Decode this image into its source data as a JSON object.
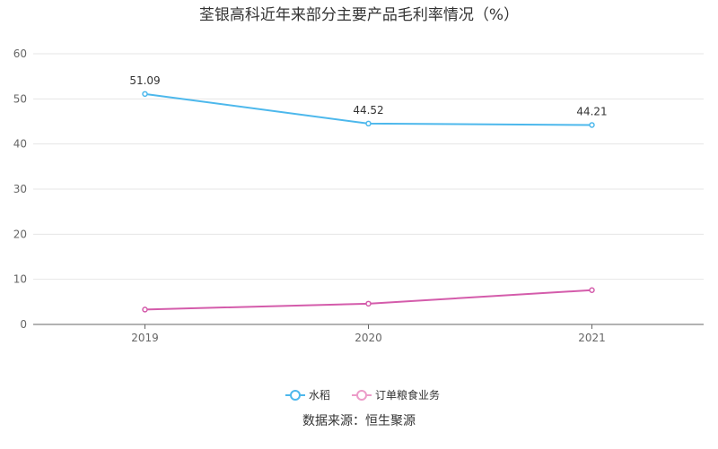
{
  "chart_data": {
    "type": "line",
    "title": "荃银高科近年来部分主要产品毛利率情况（%）",
    "source": "数据来源：恒生聚源",
    "categories": [
      "2019",
      "2020",
      "2021"
    ],
    "ylim": [
      0,
      60
    ],
    "yticks": [
      0,
      10,
      20,
      30,
      40,
      50,
      60
    ],
    "grid": true,
    "legend_position": "bottom",
    "series": [
      {
        "name": "水稻",
        "values": [
          51.09,
          44.52,
          44.21
        ],
        "color": "#4db8ec",
        "labels": [
          "51.09",
          "44.52",
          "44.21"
        ]
      },
      {
        "name": "订单粮食业务",
        "values": [
          3.3,
          4.6,
          7.6
        ],
        "color": "#d45cab",
        "legend_color": "#ec9cc9"
      }
    ]
  }
}
